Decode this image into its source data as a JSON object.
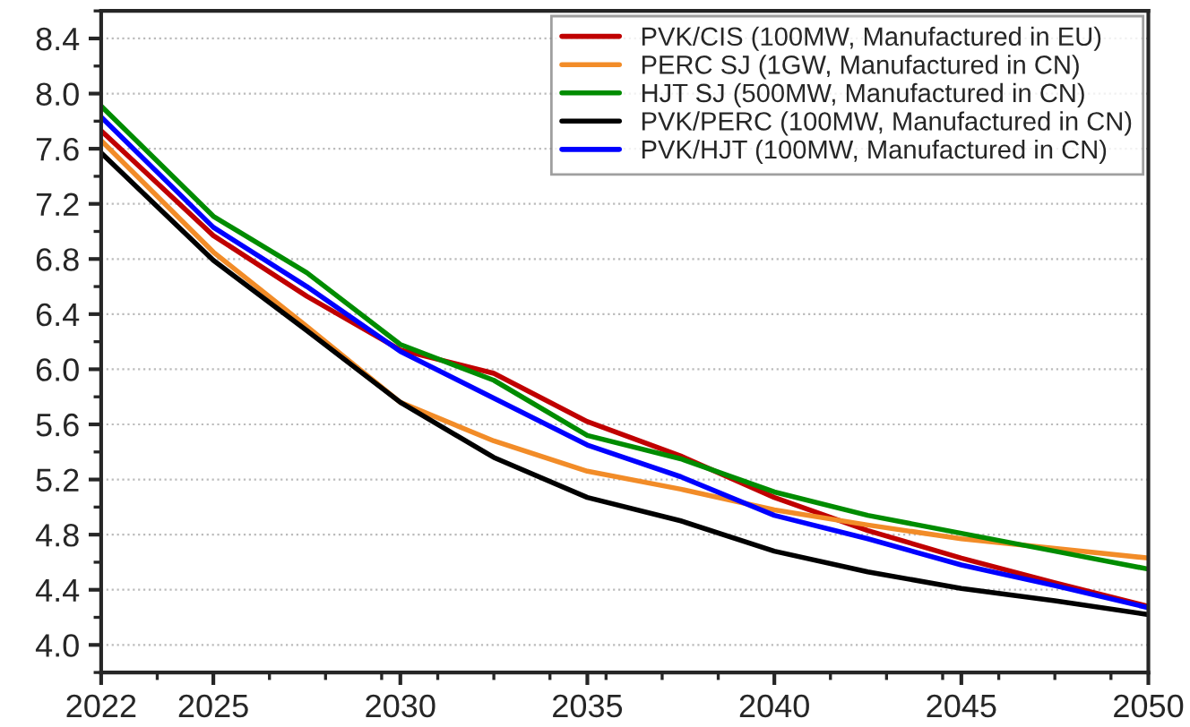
{
  "chart_data": {
    "type": "line",
    "x": [
      2022,
      2025,
      2027.5,
      2030,
      2032.5,
      2035,
      2037.5,
      2040,
      2042.5,
      2045,
      2047.5,
      2050
    ],
    "series": [
      {
        "name": "PVK/CIS (100MW, Manufactured in EU)",
        "color": "#c00000",
        "values": [
          7.73,
          6.97,
          6.53,
          6.14,
          5.97,
          5.62,
          5.37,
          5.07,
          4.83,
          4.63,
          4.45,
          4.28
        ]
      },
      {
        "name": "PERC SJ (1GW, Manufactured in CN)",
        "color": "#f28c28",
        "values": [
          7.66,
          6.85,
          6.31,
          5.76,
          5.48,
          5.26,
          5.13,
          4.98,
          4.87,
          4.77,
          4.7,
          4.63
        ]
      },
      {
        "name": "HJT SJ (500MW, Manufactured in CN)",
        "color": "#008c00",
        "values": [
          7.91,
          7.11,
          6.7,
          6.18,
          5.92,
          5.52,
          5.35,
          5.11,
          4.94,
          4.81,
          4.68,
          4.55
        ]
      },
      {
        "name": "PVK/PERC (100MW, Manufactured in CN)",
        "color": "#000000",
        "values": [
          7.57,
          6.79,
          6.28,
          5.76,
          5.36,
          5.07,
          4.9,
          4.68,
          4.53,
          4.41,
          4.32,
          4.22
        ]
      },
      {
        "name": "PVK/HJT (100MW, Manufactured in CN)",
        "color": "#0000ff",
        "values": [
          7.83,
          7.03,
          6.6,
          6.13,
          5.79,
          5.45,
          5.22,
          4.94,
          4.77,
          4.58,
          4.43,
          4.27
        ]
      }
    ],
    "xlim": [
      2022,
      2050
    ],
    "xticks": [
      2022,
      2025,
      2030,
      2035,
      2040,
      2045,
      2050
    ],
    "ylim": [
      3.8,
      8.6
    ],
    "yticks": [
      {
        "value": 4.0,
        "label": "4.0"
      },
      {
        "value": 4.4,
        "label": "4.4"
      },
      {
        "value": 4.8,
        "label": "4.8"
      },
      {
        "value": 5.2,
        "label": "5.2"
      },
      {
        "value": 5.6,
        "label": "5.6"
      },
      {
        "value": 6.0,
        "label": "6.0"
      },
      {
        "value": 6.4,
        "label": "6.4"
      },
      {
        "value": 6.8,
        "label": "6.8"
      },
      {
        "value": 7.2,
        "label": "7.2"
      },
      {
        "value": 7.6,
        "label": "7.6"
      },
      {
        "value": 8.0,
        "label": "8.0"
      },
      {
        "value": 8.4,
        "label": "8.4"
      }
    ],
    "grid": "y",
    "legend": "top right",
    "marker": "none",
    "line_style": "solid"
  }
}
